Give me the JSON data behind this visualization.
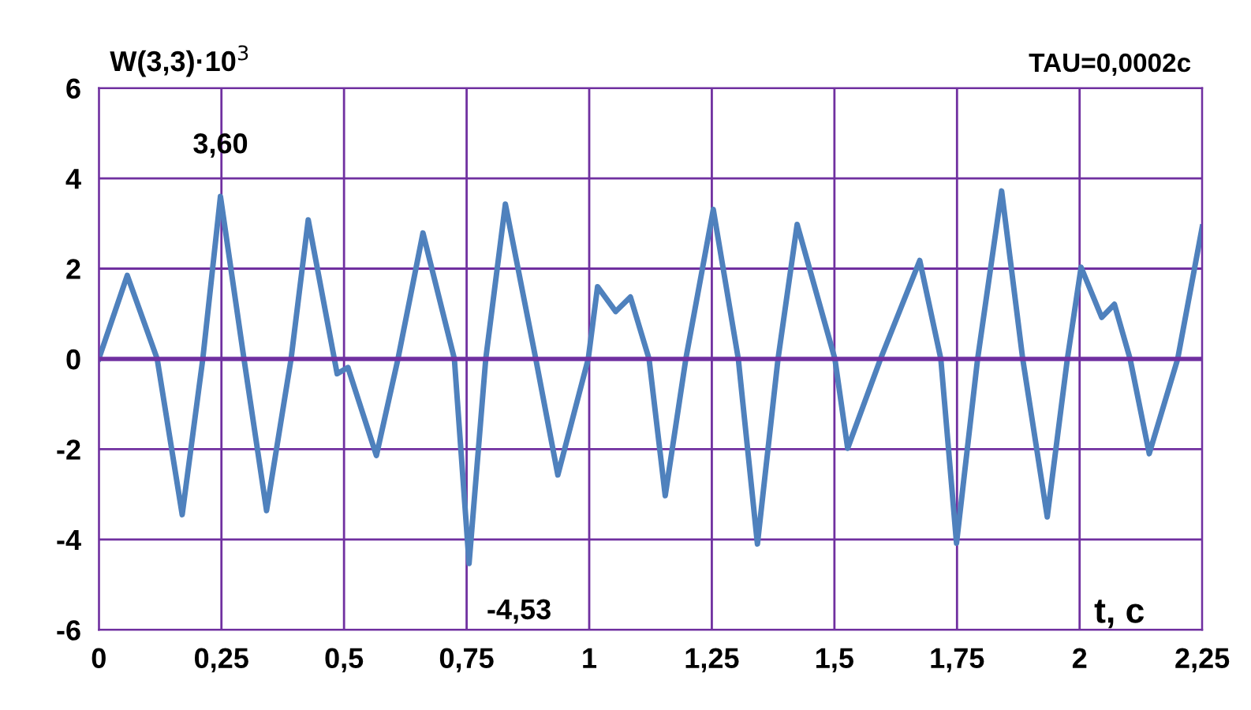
{
  "chart_data": {
    "type": "line",
    "ylabel": "W(3,3)·10$^{3}$",
    "xlabel": "t, c",
    "annotations": [
      "TAU=0,0002c",
      {
        "text": "3,60",
        "x": 0.248,
        "y": 3.6
      },
      {
        "text": "-4,53",
        "x": 0.755,
        "y": -4.53
      }
    ],
    "x": [
      0,
      0.058,
      0.119,
      0.17,
      0.212,
      0.248,
      0.296,
      0.342,
      0.392,
      0.427,
      0.486,
      0.508,
      0.566,
      0.61,
      0.661,
      0.725,
      0.755,
      0.789,
      0.829,
      0.891,
      0.936,
      0.998,
      1.017,
      1.054,
      1.084,
      1.122,
      1.155,
      1.197,
      1.253,
      1.304,
      1.343,
      1.385,
      1.424,
      1.501,
      1.527,
      1.594,
      1.674,
      1.717,
      1.749,
      1.792,
      1.841,
      1.884,
      1.934,
      1.975,
      2.003,
      2.045,
      2.071,
      2.103,
      2.142,
      2.2,
      2.25
    ],
    "series": [
      {
        "color": "#4f81bd",
        "values": [
          0,
          1.85,
          0,
          -3.45,
          0,
          3.6,
          0,
          -3.36,
          0,
          3.08,
          -0.33,
          -0.19,
          -2.14,
          0,
          2.79,
          0,
          -4.53,
          0,
          3.43,
          0,
          -2.57,
          0,
          1.6,
          1.05,
          1.37,
          0,
          -3.03,
          0,
          3.31,
          0,
          -4.1,
          0,
          2.98,
          0,
          -1.98,
          0,
          2.18,
          0,
          -4.08,
          0,
          3.72,
          0,
          -3.5,
          0,
          2.03,
          0.92,
          1.21,
          0,
          -2.1,
          0,
          2.92
        ]
      }
    ],
    "xlim": [
      0,
      2.25
    ],
    "xticks": [
      0,
      {
        "value": 0.25,
        "label": "0,25"
      },
      {
        "value": 0.5,
        "label": "0,5"
      },
      {
        "value": 0.75,
        "label": "0,75"
      },
      1,
      {
        "value": 1.25,
        "label": "1,25"
      },
      {
        "value": 1.5,
        "label": "1,5"
      },
      {
        "value": 1.75,
        "label": "1,75"
      },
      2,
      {
        "value": 2.25,
        "label": "2,25"
      }
    ],
    "ylim": [
      -6,
      6
    ],
    "yticks": [
      -6,
      -4,
      -2,
      0,
      2,
      4,
      6
    ],
    "ref_lines": [
      {
        "axis": "y",
        "value": 0,
        "color": "#7030a0"
      }
    ],
    "grid": true,
    "legend": false,
    "marker": "none",
    "line_style": "solid"
  }
}
